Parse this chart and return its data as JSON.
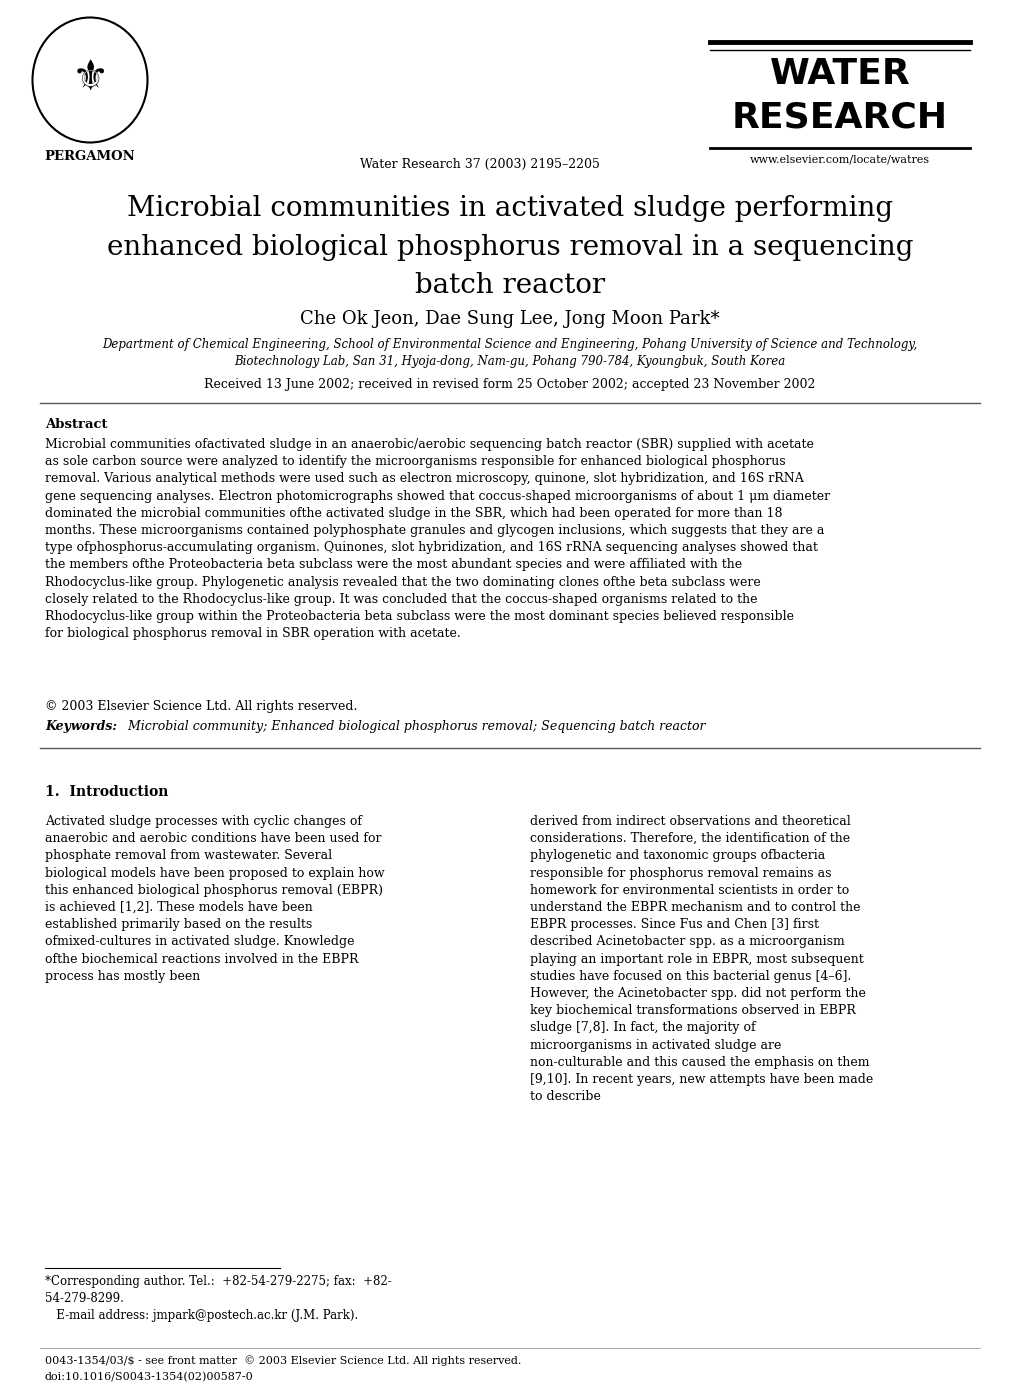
{
  "bg_color": "#ffffff",
  "header": {
    "pergamon_text": "PERGAMON",
    "journal_text": "Water Research 37 (2003) 2195–2205",
    "water_research_line1": "WATER",
    "water_research_line2": "RESEARCH",
    "elsevier_url": "www.elsevier.com/locate/watres"
  },
  "title": "Microbial communities in activated sludge performing\nenhanced biological phosphorus removal in a sequencing\nbatch reactor",
  "authors": "Che Ok Jeon, Dae Sung Lee, Jong Moon Park*",
  "affiliation": "Department of Chemical Engineering, School of Environmental Science and Engineering, Pohang University of Science and Technology,\nBiotechnology Lab, San 31, Hyoja-dong, Nam-gu, Pohang 790-784, Kyoungbuk, South Korea",
  "received": "Received 13 June 2002; received in revised form 25 October 2002; accepted 23 November 2002",
  "abstract_label": "Abstract",
  "abstract_text": "Microbial communities ofactivated sludge in an anaerobic/aerobic sequencing batch reactor (SBR) supplied with acetate as sole carbon source were analyzed to identify the microorganisms responsible for enhanced biological phosphorus removal. Various analytical methods were used such as electron microscopy, quinone, slot hybridization, and 16S rRNA gene sequencing analyses. Electron photomicrographs showed that coccus-shaped microorganisms of about 1 μm diameter dominated the microbial communities ofthe activated sludge in the SBR, which had been operated for more than 18 months. These microorganisms contained polyphosphate granules and glycogen inclusions, which suggests that they are a type ofphosphorus-accumulating organism. Quinones, slot hybridization, and 16S rRNA sequencing analyses showed that the members ofthe  Proteobacteria beta subclass were the most abundant species and were affiliated with the Rhodocyclus-like group. Phylogenetic analysis revealed that the two dominating clones ofthe beta subclass were closely related to the Rhodocyclus-like group. It was concluded that the coccus-shaped organisms related to the Rhodocyclus-like group within the Proteobacteria beta subclass were the most dominant species believed responsible for biological phosphorus removal in SBR operation with acetate.",
  "copyright": "© 2003 Elsevier Science Ltd. All rights reserved.",
  "keywords_label": "Keywords:",
  "keywords_text": "  Microbial community; Enhanced biological phosphorus removal; Sequencing batch reactor",
  "section1_label": "1.  Introduction",
  "intro_col1": "Activated sludge processes with cyclic changes of anaerobic and aerobic conditions have been used for phosphate removal from wastewater. Several biological models have been proposed to explain how this enhanced biological phosphorus removal (EBPR) is achieved [1,2]. These models have been established primarily based on the results ofmixed-cultures in activated sludge. Knowledge ofthe biochemical reactions involved in the EBPR process has mostly been",
  "intro_col2": "derived from indirect observations and theoretical considerations. Therefore, the identification of the phylogenetic and taxonomic groups ofbacteria responsible for phosphorus removal remains as homework for environmental scientists in order to understand the EBPR mechanism and to control the EBPR processes.\n   Since Fus and Chen [3] first described Acinetobacter spp. as a microorganism playing an important role in EBPR, most subsequent studies have focused on this bacterial genus [4–6]. However, the Acinetobacter spp. did not perform the key biochemical transformations observed in EBPR sludge [7,8]. In fact, the majority of microorganisms in activated sludge are non-culturable and this caused the emphasis on them [9,10]. In recent years, new attempts have been made to describe",
  "footnote_left": "*Corresponding author. Tel.:  +82-54-279-2275; fax:  +82-\n54-279-8299.\n   E-mail address: jmpark@postech.ac.kr (J.M. Park).",
  "footer_left": "0043-1354/03/$ - see front matter  © 2003 Elsevier Science Ltd. All rights reserved.",
  "footer_doi": "doi:10.1016/S0043-1354(02)00587-0"
}
